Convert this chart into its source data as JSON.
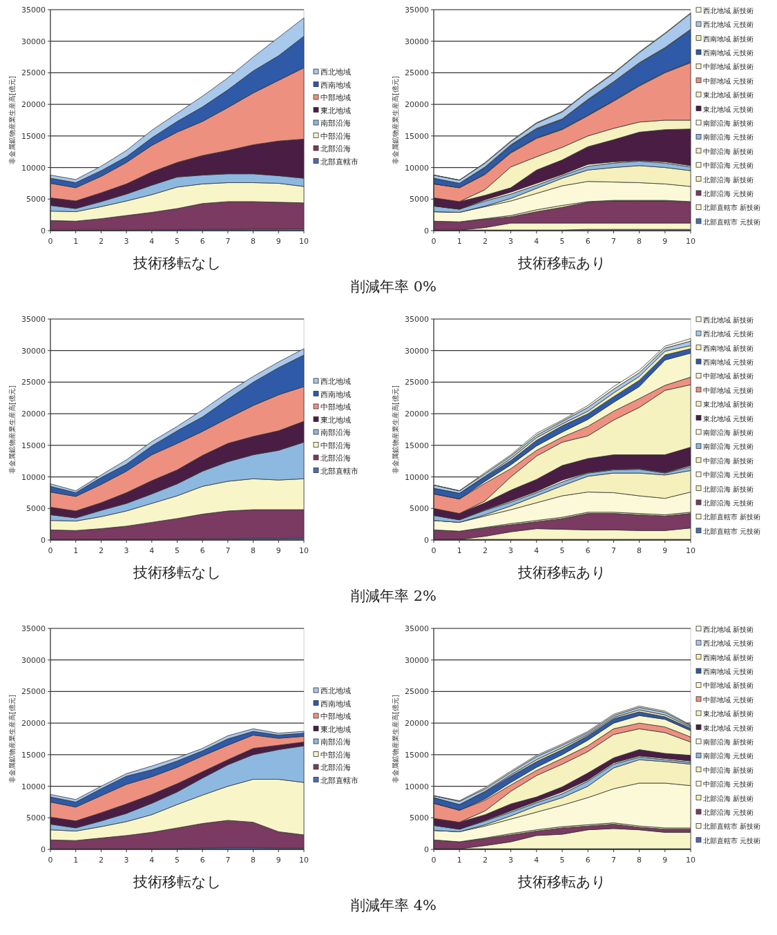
{
  "chart_data": [
    {
      "type": "area",
      "stacked": true,
      "xlabel": "技術移転なし",
      "ylabel": "非金属鉱物産業生産高[億元]",
      "x": [
        0,
        1,
        2,
        3,
        4,
        5,
        6,
        7,
        8,
        9,
        10
      ],
      "xlim": [
        0,
        10
      ],
      "xticks": [
        0,
        1,
        2,
        3,
        4,
        5,
        6,
        7,
        8,
        9,
        10
      ],
      "ylim": [
        0,
        35000
      ],
      "yticks": [
        0,
        5000,
        10000,
        15000,
        20000,
        25000,
        30000,
        35000
      ],
      "grid": "y",
      "legend": "right",
      "series": [
        {
          "name": "北部直轄市",
          "color": "#4a6fb0",
          "values": [
            100,
            100,
            100,
            100,
            150,
            150,
            200,
            200,
            250,
            250,
            300
          ]
        },
        {
          "name": "北部沿海",
          "color": "#7a3a62",
          "values": [
            1500,
            1400,
            1800,
            2300,
            2750,
            3350,
            4100,
            4400,
            4350,
            4250,
            4100
          ]
        },
        {
          "name": "中部沿海",
          "color": "#f8f5c8",
          "values": [
            1500,
            1500,
            1900,
            2300,
            2800,
            3400,
            3100,
            3000,
            3000,
            3000,
            2600
          ]
        },
        {
          "name": "南部沿海",
          "color": "#8db8e0",
          "values": [
            900,
            500,
            800,
            1100,
            1500,
            1600,
            1400,
            1400,
            1400,
            1200,
            1300
          ]
        },
        {
          "name": "東北地域",
          "color": "#4a1e44",
          "values": [
            1200,
            1200,
            1400,
            1600,
            2100,
            2300,
            3100,
            3700,
            4600,
            5500,
            6200
          ]
        },
        {
          "name": "中部地域",
          "color": "#ee9080",
          "values": [
            2300,
            2100,
            2600,
            3400,
            4200,
            4800,
            5400,
            6800,
            8200,
            9600,
            11300
          ]
        },
        {
          "name": "西南地域",
          "color": "#2e5aa8",
          "values": [
            800,
            800,
            900,
            900,
            1200,
            1700,
            2300,
            2800,
            3500,
            3900,
            5000
          ]
        },
        {
          "name": "西北地域",
          "color": "#a8c8ec",
          "values": [
            500,
            500,
            700,
            1000,
            1200,
            1300,
            1700,
            1900,
            2200,
            2900,
            2900
          ]
        }
      ]
    },
    {
      "type": "area",
      "stacked": true,
      "xlabel": "技術移転あり",
      "ylabel": "非金属鉱物産業生産高[億元]",
      "annotations": [
        "削減年率 0%"
      ],
      "x": [
        0,
        1,
        2,
        3,
        4,
        5,
        6,
        7,
        8,
        9,
        10
      ],
      "xlim": [
        0,
        10
      ],
      "xticks": [
        0,
        1,
        2,
        3,
        4,
        5,
        6,
        7,
        8,
        9,
        10
      ],
      "ylim": [
        0,
        35000
      ],
      "yticks": [
        0,
        5000,
        10000,
        15000,
        20000,
        25000,
        30000,
        35000
      ],
      "grid": "y",
      "legend": "right",
      "series": [
        {
          "name": "北部直轄市 元技術",
          "color": "#4a6fb0",
          "values": [
            100,
            100,
            100,
            100,
            100,
            100,
            200,
            200,
            200,
            200,
            200
          ]
        },
        {
          "name": "北部直轄市 新技術",
          "color": "#f8f5c8",
          "values": [
            0,
            0,
            400,
            1100,
            1100,
            1100,
            1000,
            1000,
            1000,
            1000,
            1000
          ]
        },
        {
          "name": "北部沿海 元技術",
          "color": "#7a3a62",
          "values": [
            1400,
            1300,
            1300,
            1000,
            1800,
            2500,
            3300,
            3500,
            3500,
            3500,
            3300
          ]
        },
        {
          "name": "北部沿海 新技術",
          "color": "#f3efb8",
          "values": [
            0,
            0,
            100,
            200,
            300,
            300,
            100,
            100,
            100,
            100,
            100
          ]
        },
        {
          "name": "中部沿海 元技術",
          "color": "#fbf9d8",
          "values": [
            1500,
            1500,
            1900,
            2300,
            2600,
            3100,
            3200,
            2900,
            2800,
            2600,
            2400
          ]
        },
        {
          "name": "中部沿海 新技術",
          "color": "#f5f0bc",
          "values": [
            0,
            0,
            100,
            400,
            800,
            1200,
            1800,
            2300,
            2700,
            2600,
            2500
          ]
        },
        {
          "name": "南部沿海 元技術",
          "color": "#8db8e0",
          "values": [
            900,
            500,
            800,
            700,
            500,
            400,
            600,
            700,
            700,
            700,
            600
          ]
        },
        {
          "name": "南部沿海 新技術",
          "color": "#fcfadc",
          "values": [
            0,
            0,
            200,
            300,
            300,
            200,
            300,
            200,
            100,
            200,
            200
          ]
        },
        {
          "name": "東北地域 元技術",
          "color": "#4a1e44",
          "values": [
            1300,
            1200,
            700,
            700,
            2100,
            2300,
            2800,
            3500,
            4500,
            5100,
            5800
          ]
        },
        {
          "name": "東北地域 新技術",
          "color": "#f6f2c0",
          "values": [
            0,
            0,
            900,
            3300,
            2100,
            2000,
            1700,
            1800,
            1600,
            1500,
            1400
          ]
        },
        {
          "name": "中部地域 元技術",
          "color": "#ee9080",
          "values": [
            2200,
            2200,
            2400,
            2200,
            2900,
            2800,
            3200,
            4300,
            5700,
            7500,
            9100
          ]
        },
        {
          "name": "中部地域 新技術",
          "color": "#f9f6cc",
          "values": [
            0,
            0,
            100,
            100,
            100,
            100,
            100,
            100,
            100,
            100,
            100
          ]
        },
        {
          "name": "西南地域 元技術",
          "color": "#2e5aa8",
          "values": [
            900,
            700,
            1000,
            1100,
            1400,
            1500,
            2400,
            2900,
            3500,
            3800,
            5100
          ]
        },
        {
          "name": "西南地域 新技術",
          "color": "#f2eeb4",
          "values": [
            0,
            0,
            100,
            100,
            100,
            100,
            100,
            100,
            100,
            100,
            100
          ]
        },
        {
          "name": "西北地域 元技術",
          "color": "#a8c8ec",
          "values": [
            500,
            500,
            600,
            500,
            800,
            1100,
            1200,
            1300,
            1600,
            2200,
            2500
          ]
        },
        {
          "name": "西北地域 新技術",
          "color": "#fdfbe2",
          "values": [
            0,
            0,
            100,
            100,
            100,
            100,
            100,
            100,
            100,
            100,
            100
          ]
        }
      ]
    },
    {
      "type": "area",
      "stacked": true,
      "xlabel": "技術移転なし",
      "ylabel": "非金属鉱物産業生産高[億元]",
      "x": [
        0,
        1,
        2,
        3,
        4,
        5,
        6,
        7,
        8,
        9,
        10
      ],
      "xlim": [
        0,
        10
      ],
      "xticks": [
        0,
        1,
        2,
        3,
        4,
        5,
        6,
        7,
        8,
        9,
        10
      ],
      "ylim": [
        0,
        35000
      ],
      "yticks": [
        0,
        5000,
        10000,
        15000,
        20000,
        25000,
        30000,
        35000
      ],
      "grid": "y",
      "legend": "right",
      "series": [
        {
          "name": "北部直轄市",
          "color": "#4a6fb0",
          "values": [
            100,
            100,
            100,
            100,
            100,
            150,
            200,
            200,
            250,
            250,
            300
          ]
        },
        {
          "name": "北部沿海",
          "color": "#7a3a62",
          "values": [
            1500,
            1400,
            1700,
            2100,
            2700,
            3250,
            3900,
            4400,
            4550,
            4550,
            4500
          ]
        },
        {
          "name": "中部沿海",
          "color": "#f8f5c8",
          "values": [
            1500,
            1500,
            1900,
            2400,
            3000,
            3600,
            4400,
            4700,
            4900,
            4700,
            4900
          ]
        },
        {
          "name": "南部沿海",
          "color": "#8db8e0",
          "values": [
            900,
            500,
            1000,
            1200,
            1500,
            1900,
            2400,
            3100,
            3800,
            4700,
            5800
          ]
        },
        {
          "name": "東北地域",
          "color": "#4a1e44",
          "values": [
            1200,
            1100,
            1200,
            1700,
            2100,
            2200,
            2500,
            2900,
            2900,
            3100,
            3300
          ]
        },
        {
          "name": "中部地域",
          "color": "#ee9080",
          "values": [
            2400,
            2300,
            2900,
            3400,
            4100,
            4200,
            3800,
            4000,
            4900,
            5700,
            5500
          ]
        },
        {
          "name": "西南地域",
          "color": "#2e5aa8",
          "values": [
            900,
            600,
            1100,
            1100,
            1400,
            2000,
            2300,
            3000,
            3700,
            4300,
            5000
          ]
        },
        {
          "name": "西北地域",
          "color": "#a8c8ec",
          "values": [
            400,
            300,
            400,
            700,
            700,
            700,
            1100,
            1100,
            900,
            900,
            1000
          ]
        }
      ]
    },
    {
      "type": "area",
      "stacked": true,
      "xlabel": "技術移転あり",
      "ylabel": "非金属鉱物産業生産高[億元]",
      "annotations": [
        "削減年率 2%"
      ],
      "x": [
        0,
        1,
        2,
        3,
        4,
        5,
        6,
        7,
        8,
        9,
        10
      ],
      "xlim": [
        0,
        10
      ],
      "xticks": [
        0,
        1,
        2,
        3,
        4,
        5,
        6,
        7,
        8,
        9,
        10
      ],
      "ylim": [
        0,
        35000
      ],
      "yticks": [
        0,
        5000,
        10000,
        15000,
        20000,
        25000,
        30000,
        35000
      ],
      "grid": "y",
      "legend": "right",
      "series": [
        {
          "name": "北部直轄市 元技術",
          "color": "#4a6fb0",
          "values": [
            100,
            100,
            100,
            100,
            100,
            100,
            100,
            100,
            100,
            100,
            100
          ]
        },
        {
          "name": "北部直轄市 新技術",
          "color": "#f8f5c8",
          "values": [
            0,
            0,
            500,
            1200,
            1700,
            1600,
            1500,
            1500,
            1400,
            1400,
            1800
          ]
        },
        {
          "name": "北部沿海 元技術",
          "color": "#7a3a62",
          "values": [
            1500,
            1300,
            1300,
            1100,
            1100,
            1700,
            2600,
            2600,
            2500,
            2300,
            2300
          ]
        },
        {
          "name": "北部沿海 新技術",
          "color": "#f3efb8",
          "values": [
            0,
            0,
            100,
            200,
            200,
            200,
            200,
            200,
            200,
            200,
            200
          ]
        },
        {
          "name": "中部沿海 元技術",
          "color": "#fbf9d8",
          "values": [
            1500,
            1400,
            1800,
            2200,
            2800,
            3400,
            3200,
            3100,
            2800,
            2600,
            3200
          ]
        },
        {
          "name": "中部沿海 新技術",
          "color": "#f5f0bc",
          "values": [
            0,
            0,
            200,
            600,
            1100,
            1600,
            2500,
            3100,
            3600,
            3700,
            3400
          ]
        },
        {
          "name": "南部沿海 元技術",
          "color": "#8db8e0",
          "values": [
            800,
            400,
            700,
            600,
            500,
            600,
            500,
            500,
            600,
            300,
            600
          ]
        },
        {
          "name": "南部沿海 新技術",
          "color": "#fcfadc",
          "values": [
            0,
            0,
            100,
            200,
            200,
            300,
            100,
            100,
            100,
            100,
            200
          ]
        },
        {
          "name": "東北地域 元技術",
          "color": "#4a1e44",
          "values": [
            1100,
            1000,
            1100,
            1700,
            1900,
            2300,
            2200,
            2300,
            2200,
            2800,
            2900
          ]
        },
        {
          "name": "東北地域 新技術",
          "color": "#f6f2c0",
          "values": [
            0,
            0,
            300,
            2100,
            3700,
            3700,
            3600,
            5500,
            7500,
            10200,
            9900
          ]
        },
        {
          "name": "中部地域 元技術",
          "color": "#ee9080",
          "values": [
            2300,
            2300,
            2800,
            1300,
            900,
            800,
            1500,
            1400,
            1400,
            800,
            1200
          ]
        },
        {
          "name": "中部地域 新技術",
          "color": "#f9f6cc",
          "values": [
            0,
            0,
            300,
            600,
            700,
            800,
            1100,
            1400,
            1900,
            4000,
            3800
          ]
        },
        {
          "name": "西南地域 元技術",
          "color": "#2e5aa8",
          "values": [
            900,
            900,
            700,
            700,
            900,
            1000,
            900,
            900,
            1000,
            800,
            700
          ]
        },
        {
          "name": "西南地域 新技術",
          "color": "#f2eeb4",
          "values": [
            0,
            0,
            100,
            300,
            400,
            300,
            400,
            600,
            600,
            600,
            500
          ]
        },
        {
          "name": "西北地域 元技術",
          "color": "#a8c8ec",
          "values": [
            500,
            400,
            400,
            400,
            400,
            400,
            600,
            600,
            600,
            500,
            700
          ]
        },
        {
          "name": "西北地域 新技術",
          "color": "#fdfbe2",
          "values": [
            0,
            0,
            200,
            200,
            300,
            200,
            300,
            400,
            400,
            300,
            400
          ]
        }
      ]
    },
    {
      "type": "area",
      "stacked": true,
      "xlabel": "技術移転なし",
      "ylabel": "非金属鉱物産業生産高[億元]",
      "x": [
        0,
        1,
        2,
        3,
        4,
        5,
        6,
        7,
        8,
        9,
        10
      ],
      "xlim": [
        0,
        10
      ],
      "xticks": [
        0,
        1,
        2,
        3,
        4,
        5,
        6,
        7,
        8,
        9,
        10
      ],
      "ylim": [
        0,
        35000
      ],
      "yticks": [
        0,
        5000,
        10000,
        15000,
        20000,
        25000,
        30000,
        35000
      ],
      "grid": "y",
      "legend": "right",
      "series": [
        {
          "name": "北部直轄市",
          "color": "#4a6fb0",
          "values": [
            100,
            100,
            100,
            100,
            100,
            150,
            200,
            250,
            250,
            200,
            200
          ]
        },
        {
          "name": "北部沿海",
          "color": "#7a3a62",
          "values": [
            1400,
            1300,
            1700,
            2100,
            2600,
            3250,
            3900,
            4350,
            4050,
            2600,
            2100
          ]
        },
        {
          "name": "中部沿海",
          "color": "#f8f5c8",
          "values": [
            1600,
            1500,
            1800,
            2200,
            2800,
            3700,
            4500,
            5400,
            6800,
            8300,
            8300
          ]
        },
        {
          "name": "南部沿海",
          "color": "#8db8e0",
          "values": [
            900,
            500,
            900,
            1300,
            1800,
            2000,
            2700,
            3400,
            3900,
            4700,
            5800
          ]
        },
        {
          "name": "東北地域",
          "color": "#4a1e44",
          "values": [
            1100,
            1100,
            1300,
            1500,
            1400,
            1300,
            1000,
            800,
            1000,
            700,
            600
          ]
        },
        {
          "name": "中部地域",
          "color": "#ee9080",
          "values": [
            2400,
            2200,
            2700,
            3100,
            2800,
            2600,
            2500,
            2300,
            2100,
            1100,
            900
          ]
        },
        {
          "name": "西南地域",
          "color": "#2e5aa8",
          "values": [
            800,
            800,
            1100,
            1300,
            1100,
            1000,
            800,
            1000,
            600,
            500,
            500
          ]
        },
        {
          "name": "西北地域",
          "color": "#a8c8ec",
          "values": [
            400,
            400,
            400,
            400,
            600,
            500,
            400,
            500,
            400,
            300,
            300
          ]
        }
      ]
    },
    {
      "type": "area",
      "stacked": true,
      "xlabel": "技術移転あり",
      "ylabel": "非金属鉱物産業生産高[億元]",
      "annotations": [
        "削減年率 4%"
      ],
      "x": [
        0,
        1,
        2,
        3,
        4,
        5,
        6,
        7,
        8,
        9,
        10
      ],
      "xlim": [
        0,
        10
      ],
      "xticks": [
        0,
        1,
        2,
        3,
        4,
        5,
        6,
        7,
        8,
        9,
        10
      ],
      "ylim": [
        0,
        35000
      ],
      "yticks": [
        0,
        5000,
        10000,
        15000,
        20000,
        25000,
        30000,
        35000
      ],
      "grid": "y",
      "legend": "right",
      "series": [
        {
          "name": "北部直轄市 元技術",
          "color": "#4a6fb0",
          "values": [
            100,
            100,
            100,
            100,
            100,
            100,
            100,
            100,
            100,
            100,
            100
          ]
        },
        {
          "name": "北部直轄市 新技術",
          "color": "#f8f5c8",
          "values": [
            0,
            0,
            500,
            1100,
            2100,
            2300,
            3000,
            3200,
            3000,
            2600,
            2600
          ]
        },
        {
          "name": "北部沿海 元技術",
          "color": "#7a3a62",
          "values": [
            1400,
            1100,
            1100,
            1100,
            700,
            1000,
            600,
            700,
            400,
            500,
            500
          ]
        },
        {
          "name": "北部沿海 新技術",
          "color": "#f3efb8",
          "values": [
            0,
            0,
            100,
            200,
            200,
            200,
            200,
            200,
            200,
            200,
            200
          ]
        },
        {
          "name": "中部沿海 元技術",
          "color": "#fbf9d8",
          "values": [
            1500,
            1600,
            1900,
            2300,
            2800,
            3400,
            4300,
            5400,
            6800,
            7100,
            6700
          ]
        },
        {
          "name": "中部沿海 新技術",
          "color": "#f5f0bc",
          "values": [
            0,
            0,
            200,
            500,
            1000,
            1200,
            1800,
            3300,
            3700,
            3400,
            3400
          ]
        },
        {
          "name": "南部沿海 元技術",
          "color": "#8db8e0",
          "values": [
            800,
            400,
            600,
            600,
            500,
            600,
            800,
            600,
            400,
            300,
            300
          ]
        },
        {
          "name": "南部沿海 新技術",
          "color": "#fcfadc",
          "values": [
            0,
            0,
            100,
            200,
            200,
            300,
            200,
            200,
            200,
            200,
            200
          ]
        },
        {
          "name": "東北地域 元技術",
          "color": "#4a1e44",
          "values": [
            1100,
            1100,
            900,
            1100,
            700,
            800,
            1100,
            800,
            1000,
            800,
            900
          ]
        },
        {
          "name": "東北地域 新技術",
          "color": "#f6f2c0",
          "values": [
            0,
            0,
            600,
            2000,
            3400,
            3600,
            3400,
            3700,
            3300,
            3300,
            2100
          ]
        },
        {
          "name": "中部地域 元技術",
          "color": "#ee9080",
          "values": [
            2400,
            1900,
            1700,
            1000,
            800,
            900,
            900,
            900,
            900,
            900,
            800
          ]
        },
        {
          "name": "中部地域 新技術",
          "color": "#f9f6cc",
          "values": [
            0,
            0,
            200,
            400,
            500,
            600,
            900,
            900,
            1200,
            1200,
            1000
          ]
        },
        {
          "name": "西南地域 元技術",
          "color": "#2e5aa8",
          "values": [
            900,
            900,
            1100,
            1000,
            900,
            800,
            700,
            700,
            600,
            400,
            400
          ]
        },
        {
          "name": "西南地域 新技術",
          "color": "#f2eeb4",
          "values": [
            0,
            0,
            100,
            200,
            300,
            300,
            200,
            200,
            300,
            300,
            200
          ]
        },
        {
          "name": "西北地域 元技術",
          "color": "#a8c8ec",
          "values": [
            300,
            500,
            400,
            400,
            500,
            400,
            300,
            300,
            400,
            400,
            200
          ]
        },
        {
          "name": "西北地域 新技術",
          "color": "#fdfbe2",
          "values": [
            0,
            100,
            200,
            200,
            200,
            200,
            200,
            200,
            200,
            200,
            100
          ]
        }
      ]
    }
  ]
}
